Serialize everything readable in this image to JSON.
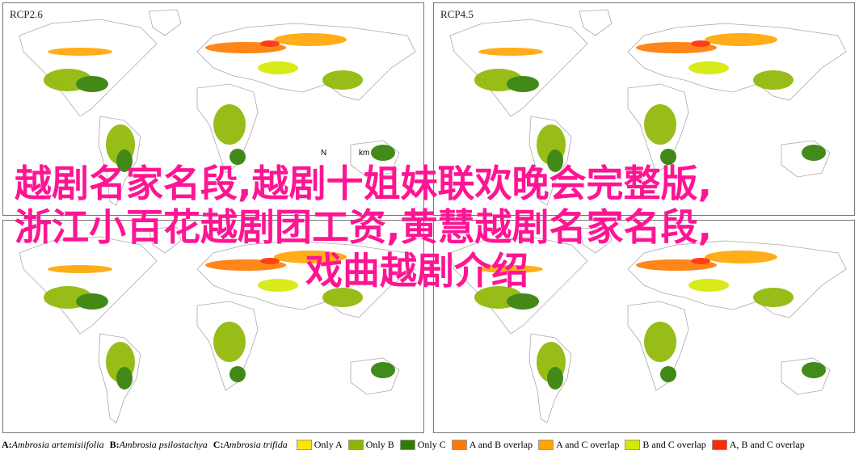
{
  "panels": [
    {
      "label": "RCP2.6"
    },
    {
      "label": "RCP4.5"
    },
    {
      "label": ""
    },
    {
      "label": ""
    }
  ],
  "map_annotations": {
    "north": "N",
    "scale_unit": "km"
  },
  "overlay_text": {
    "line1": "越剧名家名段,越剧十姐妹联欢晚会完整版,",
    "line2": "浙江小百花越剧团工资,黄慧越剧名家名段,",
    "line3": "戏曲越剧介绍"
  },
  "legend": {
    "species": [
      {
        "key": "A:",
        "name": "Ambrosia artemisiifolia"
      },
      {
        "key": "B:",
        "name": "Ambrosia psilostachya"
      },
      {
        "key": "C:",
        "name": "Ambrosia trifida"
      }
    ],
    "classes": [
      {
        "label": "Only A",
        "color": "#ffe600"
      },
      {
        "label": "Only B",
        "color": "#8db600"
      },
      {
        "label": "Only C",
        "color": "#2e7d00"
      },
      {
        "label": "A and B overlap",
        "color": "#ff7a00"
      },
      {
        "label": "A and C overlap",
        "color": "#ffa500"
      },
      {
        "label": "B and C overlap",
        "color": "#d4e800"
      },
      {
        "label": "A, B and C overlap",
        "color": "#ff2a00"
      }
    ]
  }
}
